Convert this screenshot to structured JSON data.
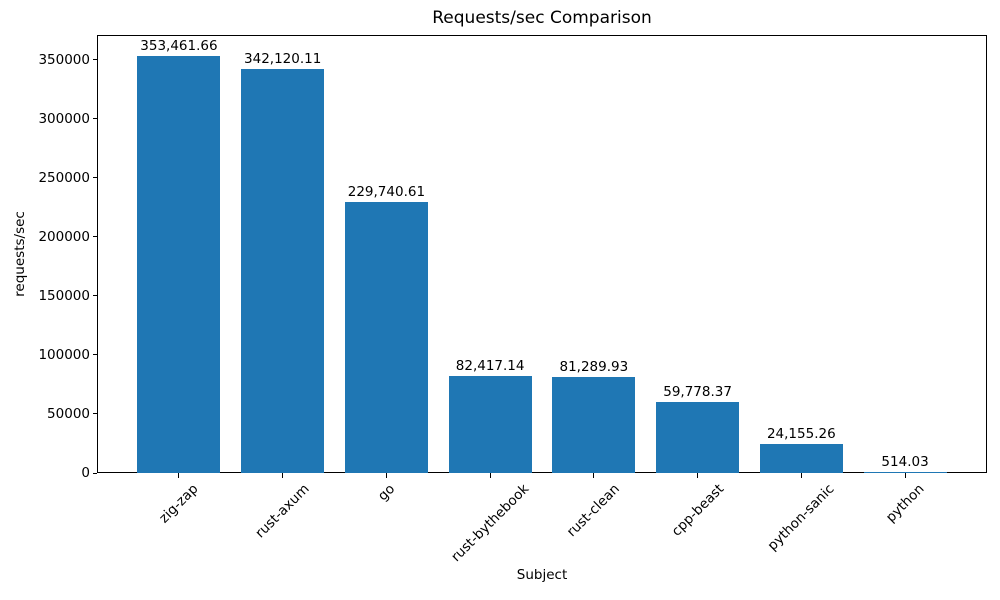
{
  "chart_data": {
    "type": "bar",
    "title": "Requests/sec Comparison",
    "xlabel": "Subject",
    "ylabel": "requests/sec",
    "categories": [
      "zig-zap",
      "rust-axum",
      "go",
      "rust-bythebook",
      "rust-clean",
      "cpp-beast",
      "python-sanic",
      "python"
    ],
    "values": [
      353461.66,
      342120.11,
      229740.61,
      82417.14,
      81289.93,
      59778.37,
      24155.26,
      514.03
    ],
    "bar_labels": [
      "353,461.66",
      "342,120.11",
      "229,740.61",
      "82,417.14",
      "81,289.93",
      "59,778.37",
      "24,155.26",
      "514.03"
    ],
    "bar_color": "#1f77b4",
    "ylim": [
      0,
      371135
    ],
    "yticks": [
      0,
      50000,
      100000,
      150000,
      200000,
      250000,
      300000,
      350000
    ],
    "ytick_labels": [
      "0",
      "50000",
      "100000",
      "150000",
      "200000",
      "250000",
      "300000",
      "350000"
    ],
    "xtick_rotation_deg": 45,
    "grid": false,
    "legend": "none",
    "bar_width_fraction": 0.8
  }
}
